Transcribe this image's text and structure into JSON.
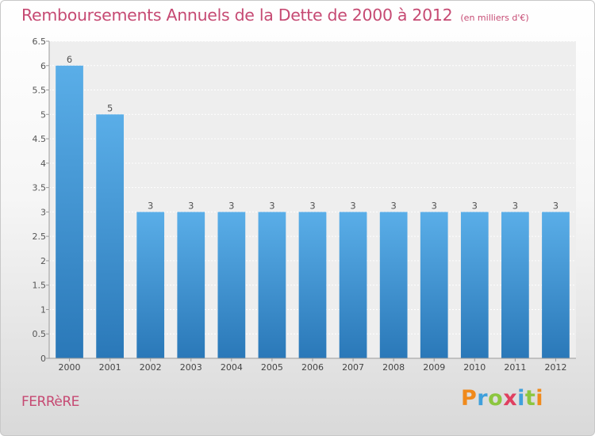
{
  "chart_data": {
    "type": "bar",
    "title": "Remboursements Annuels de la Dette de 2000 à 2012",
    "subtitle": "(en milliers d'€)",
    "categories": [
      "2000",
      "2001",
      "2002",
      "2003",
      "2004",
      "2005",
      "2006",
      "2007",
      "2008",
      "2009",
      "2010",
      "2011",
      "2012"
    ],
    "values": [
      6,
      5,
      3,
      3,
      3,
      3,
      3,
      3,
      3,
      3,
      3,
      3,
      3
    ],
    "data_labels": [
      "6",
      "5",
      "3",
      "3",
      "3",
      "3",
      "3",
      "3",
      "3",
      "3",
      "3",
      "3",
      "3"
    ],
    "y_ticks": [
      "0",
      "0.5",
      "1",
      "1.5",
      "2",
      "2.5",
      "3",
      "3.5",
      "4",
      "4.5",
      "5",
      "5.5",
      "6",
      "6.5"
    ],
    "ylim": [
      0,
      6.5
    ],
    "grid": true,
    "legend": "none",
    "bar_color": "#3d8fd8"
  },
  "commune": "FERRèRE",
  "logo": {
    "text": "Proxiti",
    "letters": [
      {
        "char": "P",
        "color": "#f08a1c"
      },
      {
        "char": "r",
        "color": "#3fa0dc"
      },
      {
        "char": "o",
        "color": "#8cc63f"
      },
      {
        "char": "x",
        "color": "#e04060"
      },
      {
        "char": "i",
        "color": "#3fa0dc"
      },
      {
        "char": "t",
        "color": "#8cc63f"
      },
      {
        "char": "i",
        "color": "#f08a1c"
      }
    ]
  }
}
